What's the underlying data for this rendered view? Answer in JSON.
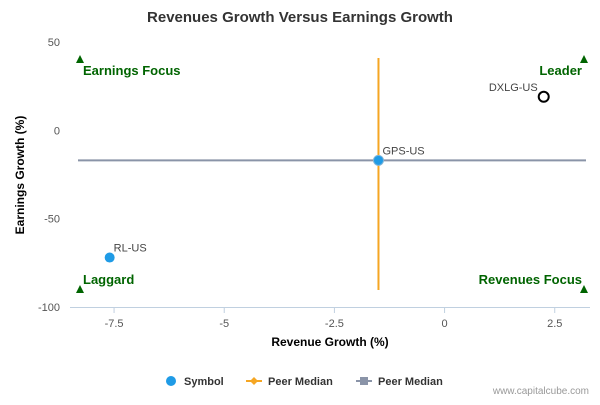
{
  "chart_data": {
    "type": "scatter",
    "title": "Revenues Growth Versus Earnings Growth",
    "xlabel": "Revenue Growth (%)",
    "ylabel": "Earnings Growth (%)",
    "xlim": [
      -8.5,
      3.3
    ],
    "ylim": [
      -100,
      50
    ],
    "x_ticks": [
      -7.5,
      -5,
      -2.5,
      0,
      2.5
    ],
    "x_tick_labels": [
      "-7.5",
      "-5",
      "-2.5",
      "0",
      "2.5"
    ],
    "y_ticks": [
      50,
      0,
      -50,
      -100
    ],
    "y_tick_labels": [
      "50",
      "0",
      "-50",
      "-100"
    ],
    "points": [
      {
        "label": "RL-US",
        "x": -7.6,
        "y": -72,
        "style": "filled"
      },
      {
        "label": "GPS-US",
        "x": -1.5,
        "y": -17,
        "style": "filled"
      },
      {
        "label": "DXLG-US",
        "x": 2.25,
        "y": 19,
        "style": "hollow"
      }
    ],
    "peer_median": {
      "x": -1.5,
      "y": -17
    },
    "quadrant_labels": {
      "top_left": "Earnings Focus",
      "top_right": "Leader",
      "bottom_left": "Laggard",
      "bottom_right": "Revenues Focus"
    },
    "legend": [
      {
        "name": "Symbol",
        "color": "#1f9be6"
      },
      {
        "name": "Peer Median",
        "color": "#f5a623"
      },
      {
        "name": "Peer Median",
        "color": "#8a94a8"
      }
    ],
    "legend_position": "bottom-center",
    "colors": {
      "point": "#1f9be6",
      "vertical_median": "#f5a623",
      "horizontal_median": "#8a94a8",
      "quadrant_text": "#006400",
      "axis": "#c0d0e0"
    }
  },
  "credit": "www.capitalcube.com"
}
